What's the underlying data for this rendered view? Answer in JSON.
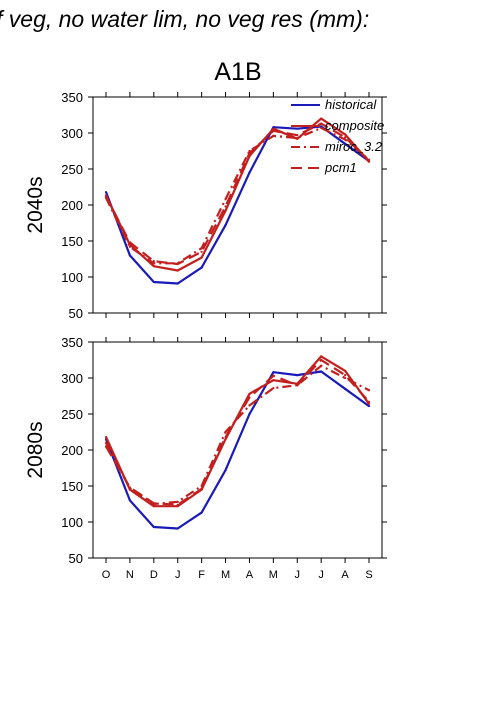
{
  "title": "f veg, no water lim, no veg res (mm):",
  "scenario": "A1B",
  "colors": {
    "historical": "#1a1ab8",
    "future": "#c21f1f",
    "axis": "#000000"
  },
  "legend": {
    "placement": "top-right",
    "entries": [
      {
        "label": "historical",
        "style": "solid",
        "color": "#1a1ab8"
      },
      {
        "label": "composite",
        "style": "solid",
        "color": "#c21f1f"
      },
      {
        "label": "miroc_3.2",
        "style": "dash-dot",
        "color": "#c21f1f"
      },
      {
        "label": "pcm1",
        "style": "long-dash",
        "color": "#c21f1f"
      }
    ]
  },
  "chart_data": [
    {
      "type": "line",
      "row_label": "2040s",
      "categories": [
        "O",
        "N",
        "D",
        "J",
        "F",
        "M",
        "A",
        "M",
        "J",
        "J",
        "A",
        "S"
      ],
      "ylim": [
        50,
        350
      ],
      "yticks": [
        50,
        100,
        150,
        200,
        250,
        300,
        350
      ],
      "grid": false,
      "series": [
        {
          "name": "historical",
          "style": "solid",
          "color": "#1a1ab8",
          "values": [
            218,
            130,
            93,
            91,
            113,
            172,
            245,
            308,
            306,
            309,
            285,
            261
          ]
        },
        {
          "name": "composite",
          "style": "solid",
          "color": "#c21f1f",
          "values": [
            213,
            145,
            115,
            109,
            127,
            192,
            268,
            306,
            292,
            320,
            298,
            260
          ]
        },
        {
          "name": "miroc_3.2",
          "style": "dash-dot",
          "color": "#c21f1f",
          "values": [
            210,
            142,
            119,
            119,
            140,
            208,
            275,
            296,
            293,
            307,
            291,
            263
          ]
        },
        {
          "name": "pcm1",
          "style": "long-dash",
          "color": "#c21f1f",
          "values": [
            212,
            148,
            122,
            118,
            135,
            198,
            272,
            303,
            297,
            313,
            294,
            262
          ]
        }
      ]
    },
    {
      "type": "line",
      "row_label": "2080s",
      "categories": [
        "O",
        "N",
        "D",
        "J",
        "F",
        "M",
        "A",
        "M",
        "J",
        "J",
        "A",
        "S"
      ],
      "ylim": [
        50,
        350
      ],
      "yticks": [
        50,
        100,
        150,
        200,
        250,
        300,
        350
      ],
      "grid": false,
      "series": [
        {
          "name": "historical",
          "style": "solid",
          "color": "#1a1ab8",
          "values": [
            215,
            130,
            93,
            91,
            113,
            172,
            250,
            308,
            304,
            309,
            285,
            261
          ]
        },
        {
          "name": "composite",
          "style": "solid",
          "color": "#c21f1f",
          "values": [
            218,
            145,
            122,
            122,
            145,
            215,
            278,
            297,
            292,
            330,
            310,
            264
          ]
        },
        {
          "name": "miroc_3.2",
          "style": "dash-dot",
          "color": "#c21f1f",
          "values": [
            210,
            147,
            125,
            128,
            150,
            225,
            262,
            286,
            290,
            317,
            300,
            283
          ]
        },
        {
          "name": "pcm1",
          "style": "long-dash",
          "color": "#c21f1f",
          "values": [
            205,
            148,
            126,
            124,
            146,
            218,
            273,
            303,
            290,
            325,
            304,
            267
          ]
        }
      ]
    }
  ]
}
